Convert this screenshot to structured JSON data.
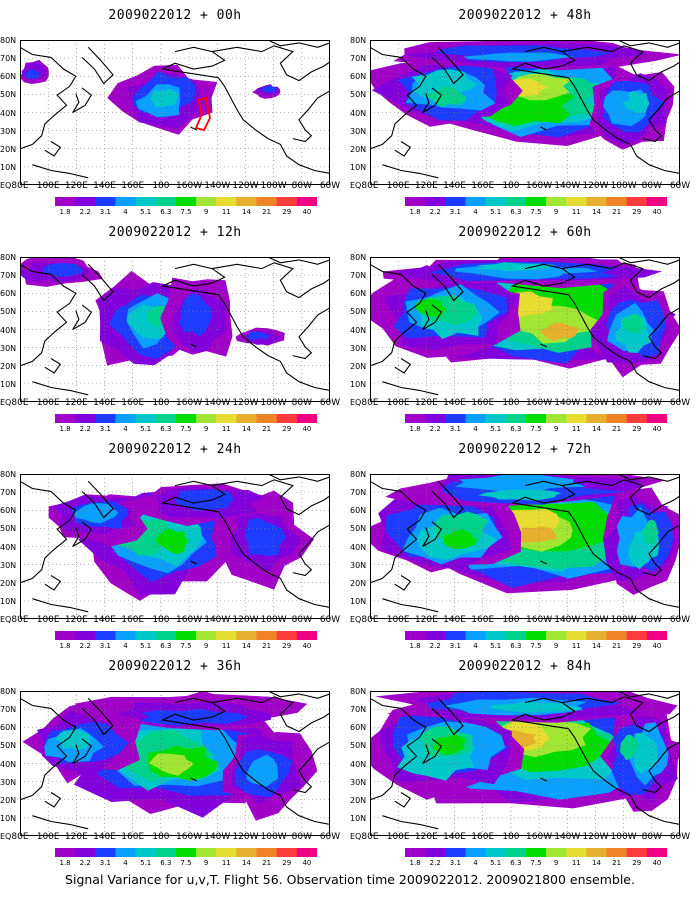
{
  "caption": "Signal Variance for u,v,T. Flight 56. Observation time 2009022012. 2009021800 ensemble.",
  "lon_labels": [
    "80E",
    "100E",
    "120E",
    "140E",
    "160E",
    "180",
    "160W",
    "140W",
    "120W",
    "100W",
    "80W",
    "60W"
  ],
  "lat_labels": [
    "80N",
    "70N",
    "60N",
    "50N",
    "40N",
    "30N",
    "20N",
    "10N",
    "EQ"
  ],
  "colorbar": {
    "labels": [
      "1.8",
      "2.2",
      "3.1",
      "4",
      "5.1",
      "6.3",
      "7.5",
      "9",
      "11",
      "14",
      "21",
      "29",
      "40"
    ],
    "colors": [
      "#a000c8",
      "#8200dc",
      "#1e3cff",
      "#0aa0ff",
      "#00c8c8",
      "#00d28c",
      "#00dc00",
      "#a0e632",
      "#e6dc32",
      "#e6af2d",
      "#f08228",
      "#fa3c3c",
      "#f00082"
    ]
  },
  "coastline_color": "#000000",
  "grid_style": "dotted",
  "highlight_color": "#ff0000",
  "panels": [
    {
      "title": "2009022012 + 00h",
      "lead_hours": 0
    },
    {
      "title": "2009022012 + 48h",
      "lead_hours": 48
    },
    {
      "title": "2009022012 + 12h",
      "lead_hours": 12
    },
    {
      "title": "2009022012 + 60h",
      "lead_hours": 60
    },
    {
      "title": "2009022012 + 24h",
      "lead_hours": 24
    },
    {
      "title": "2009022012 + 72h",
      "lead_hours": 72
    },
    {
      "title": "2009022012 + 36h",
      "lead_hours": 36
    },
    {
      "title": "2009022012 + 84h",
      "lead_hours": 84
    }
  ]
}
